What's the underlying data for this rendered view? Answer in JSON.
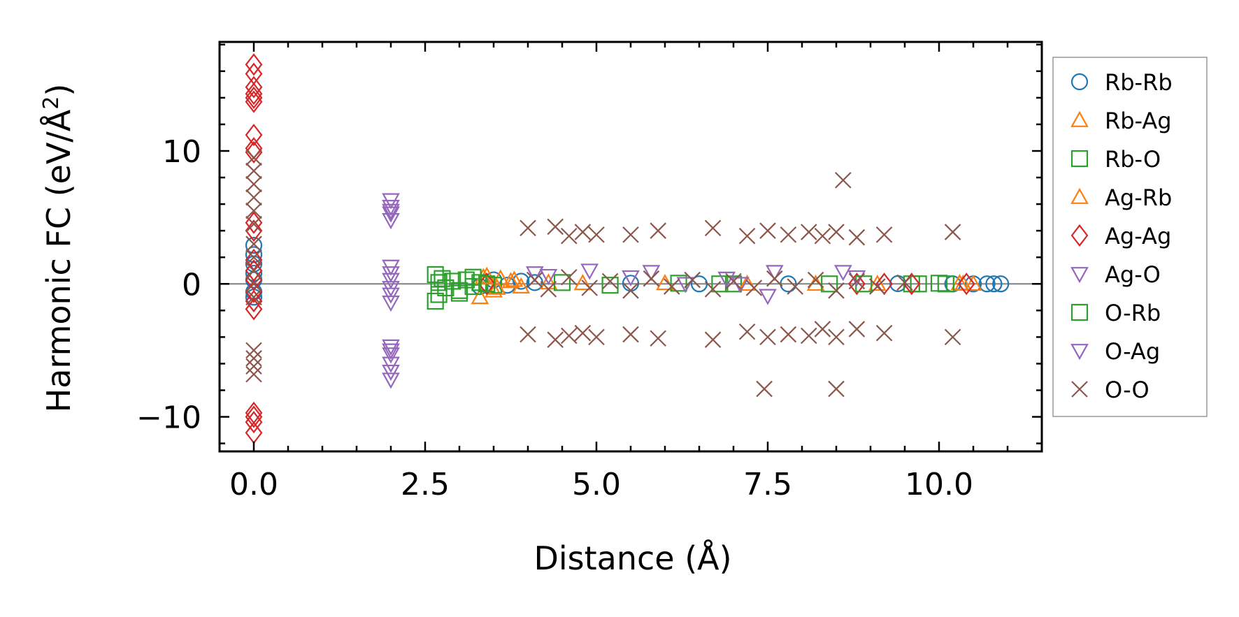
{
  "chart_data": {
    "type": "scatter",
    "title": "",
    "xlabel": "Distance (Å)",
    "ylabel": "Harmonic FC (eV/Å²)",
    "ylabel_base": "Harmonic FC (eV/Å",
    "ylabel_sup": "2",
    "ylabel_end": ")",
    "xlim": [
      -0.5,
      11.5
    ],
    "ylim": [
      -12.6,
      18.2
    ],
    "x_ticks": [
      0.0,
      2.5,
      5.0,
      7.5,
      10.0
    ],
    "x_tick_labels": [
      "0.0",
      "2.5",
      "5.0",
      "7.5",
      "10.0"
    ],
    "y_ticks": [
      -10,
      0,
      10
    ],
    "y_tick_labels": [
      "−10",
      "0",
      "10"
    ],
    "hline_y": 0,
    "legend_position": "outside right",
    "series": [
      {
        "name": "Rb-Rb",
        "marker": "circle",
        "color": "#1f77b4",
        "points": [
          [
            0,
            0.3
          ],
          [
            0,
            0.8
          ],
          [
            0,
            1.5
          ],
          [
            0,
            2.2
          ],
          [
            0,
            2.9
          ],
          [
            0,
            -0.6
          ],
          [
            0,
            -1.0
          ],
          [
            3.3,
            -0.2
          ],
          [
            3.5,
            0.3
          ],
          [
            3.7,
            -0.1
          ],
          [
            3.9,
            0.2
          ],
          [
            4.1,
            0.1
          ],
          [
            5.5,
            0.05
          ],
          [
            6.5,
            0.0
          ],
          [
            7.8,
            0.0
          ],
          [
            9.4,
            0.02
          ],
          [
            10.2,
            0.0
          ],
          [
            10.5,
            0.0
          ],
          [
            10.7,
            0.0
          ],
          [
            10.8,
            0.0
          ],
          [
            10.9,
            0.0
          ]
        ]
      },
      {
        "name": "Rb-Ag",
        "marker": "triangle-up",
        "color": "#ff7f0e",
        "points": [
          [
            3.3,
            -1.0
          ],
          [
            3.4,
            0.6
          ],
          [
            3.5,
            -0.5
          ],
          [
            3.6,
            0.4
          ],
          [
            3.8,
            0.3
          ],
          [
            3.9,
            -0.2
          ],
          [
            4.3,
            0.1
          ],
          [
            6.0,
            0.05
          ],
          [
            8.2,
            0.0
          ],
          [
            10.3,
            0.05
          ],
          [
            10.5,
            0.0
          ]
        ]
      },
      {
        "name": "Rb-O",
        "marker": "square",
        "color": "#2ca02c",
        "points": [
          [
            2.65,
            -1.3
          ],
          [
            2.65,
            0.7
          ],
          [
            2.7,
            -0.8
          ],
          [
            2.75,
            0.4
          ],
          [
            2.8,
            -0.3
          ],
          [
            2.9,
            0.2
          ],
          [
            3.0,
            -0.5
          ],
          [
            3.1,
            0.3
          ],
          [
            3.2,
            -0.2
          ],
          [
            3.3,
            0.1
          ],
          [
            3.5,
            -0.1
          ],
          [
            4.5,
            0.1
          ],
          [
            5.2,
            -0.1
          ],
          [
            6.2,
            0.05
          ],
          [
            7.0,
            0.0
          ],
          [
            8.4,
            0.0
          ],
          [
            9.6,
            0.0
          ],
          [
            9.7,
            0.0
          ],
          [
            10.0,
            0.05
          ],
          [
            10.1,
            0.0
          ]
        ]
      },
      {
        "name": "Ag-Rb",
        "marker": "triangle-up",
        "color": "#ff7f0e",
        "points": [
          [
            3.35,
            0.5
          ],
          [
            3.55,
            -0.3
          ],
          [
            3.75,
            0.2
          ],
          [
            4.8,
            0.05
          ],
          [
            7.2,
            0.0
          ],
          [
            9.1,
            0.0
          ],
          [
            10.35,
            0.0
          ]
        ]
      },
      {
        "name": "Ag-Ag",
        "marker": "diamond",
        "color": "#d62728",
        "points": [
          [
            0,
            16.5
          ],
          [
            0,
            15.8
          ],
          [
            0,
            14.8
          ],
          [
            0,
            14.3
          ],
          [
            0,
            14.0
          ],
          [
            0,
            13.7
          ],
          [
            0,
            11.2
          ],
          [
            0,
            10.2
          ],
          [
            0,
            9.9
          ],
          [
            0,
            4.6
          ],
          [
            0,
            4.0
          ],
          [
            0,
            1.8
          ],
          [
            0,
            1.0
          ],
          [
            0,
            0.3
          ],
          [
            0,
            -0.6
          ],
          [
            0,
            -1.3
          ],
          [
            0,
            -1.9
          ],
          [
            0,
            -9.7
          ],
          [
            0,
            -10.0
          ],
          [
            0,
            -10.4
          ],
          [
            0,
            -11.2
          ],
          [
            3.4,
            0.0
          ],
          [
            8.8,
            0.0
          ],
          [
            9.2,
            0.0
          ],
          [
            9.6,
            0.0
          ],
          [
            10.4,
            0.0
          ]
        ]
      },
      {
        "name": "Ag-O",
        "marker": "triangle-down",
        "color": "#9467bd",
        "points": [
          [
            2.0,
            6.3
          ],
          [
            2.0,
            5.8
          ],
          [
            2.0,
            5.3
          ],
          [
            2.0,
            4.8
          ],
          [
            2.0,
            1.3
          ],
          [
            2.0,
            0.8
          ],
          [
            2.0,
            0.3
          ],
          [
            2.0,
            -0.3
          ],
          [
            2.0,
            -0.8
          ],
          [
            2.0,
            -1.4
          ],
          [
            2.0,
            -4.7
          ],
          [
            2.0,
            -5.3
          ],
          [
            2.0,
            -6.0
          ],
          [
            2.0,
            -6.6
          ],
          [
            2.0,
            -7.2
          ],
          [
            4.1,
            0.8
          ],
          [
            4.9,
            1.0
          ],
          [
            5.8,
            0.9
          ],
          [
            7.6,
            0.9
          ],
          [
            8.6,
            0.9
          ],
          [
            6.3,
            0.0
          ],
          [
            7.1,
            0.0
          ]
        ]
      },
      {
        "name": "O-Rb",
        "marker": "square",
        "color": "#2ca02c",
        "points": [
          [
            2.7,
            0.1
          ],
          [
            3.0,
            -0.7
          ],
          [
            3.2,
            0.5
          ],
          [
            3.4,
            0.0
          ],
          [
            6.8,
            0.0
          ],
          [
            8.9,
            0.0
          ]
        ]
      },
      {
        "name": "O-Ag",
        "marker": "triangle-down",
        "color": "#9467bd",
        "points": [
          [
            2.0,
            5.5
          ],
          [
            2.0,
            -5.0
          ],
          [
            4.3,
            0.6
          ],
          [
            5.5,
            0.5
          ],
          [
            6.9,
            0.4
          ],
          [
            7.5,
            -0.9
          ],
          [
            8.8,
            0.5
          ]
        ]
      },
      {
        "name": "O-O",
        "marker": "x",
        "color": "#8c564b",
        "points": [
          [
            0,
            9.5
          ],
          [
            0,
            8.5
          ],
          [
            0,
            7.5
          ],
          [
            0,
            6.5
          ],
          [
            0,
            5.5
          ],
          [
            0,
            4.5
          ],
          [
            0,
            3.0
          ],
          [
            0,
            2.0
          ],
          [
            0,
            1.0
          ],
          [
            0,
            0.0
          ],
          [
            0,
            -1.0
          ],
          [
            0,
            -5.0
          ],
          [
            0,
            -5.6
          ],
          [
            0,
            -6.2
          ],
          [
            0,
            -6.8
          ],
          [
            4.0,
            4.2
          ],
          [
            4.4,
            4.3
          ],
          [
            4.6,
            3.6
          ],
          [
            4.8,
            3.9
          ],
          [
            5.0,
            3.7
          ],
          [
            5.5,
            3.7
          ],
          [
            5.9,
            4.0
          ],
          [
            6.7,
            4.2
          ],
          [
            7.2,
            3.6
          ],
          [
            7.5,
            4.0
          ],
          [
            7.8,
            3.7
          ],
          [
            8.1,
            3.9
          ],
          [
            8.3,
            3.6
          ],
          [
            8.5,
            3.9
          ],
          [
            8.8,
            3.5
          ],
          [
            9.2,
            3.7
          ],
          [
            10.2,
            3.9
          ],
          [
            8.6,
            7.8
          ],
          [
            4.0,
            -3.8
          ],
          [
            4.4,
            -4.2
          ],
          [
            4.6,
            -3.9
          ],
          [
            4.8,
            -3.7
          ],
          [
            5.0,
            -4.0
          ],
          [
            5.5,
            -3.8
          ],
          [
            5.9,
            -4.1
          ],
          [
            6.7,
            -4.2
          ],
          [
            7.2,
            -3.6
          ],
          [
            7.5,
            -4.0
          ],
          [
            7.8,
            -3.8
          ],
          [
            8.1,
            -3.9
          ],
          [
            8.3,
            -3.4
          ],
          [
            8.5,
            -4.0
          ],
          [
            8.8,
            -3.4
          ],
          [
            9.2,
            -3.7
          ],
          [
            10.2,
            -4.0
          ],
          [
            7.45,
            -7.9
          ],
          [
            8.5,
            -7.9
          ],
          [
            4.1,
            0.3
          ],
          [
            4.3,
            -0.4
          ],
          [
            4.6,
            0.5
          ],
          [
            4.9,
            -0.3
          ],
          [
            5.2,
            0.2
          ],
          [
            5.5,
            -0.5
          ],
          [
            5.8,
            0.4
          ],
          [
            6.1,
            -0.2
          ],
          [
            6.4,
            0.3
          ],
          [
            6.7,
            -0.4
          ],
          [
            7.0,
            0.2
          ],
          [
            7.3,
            -0.3
          ],
          [
            7.6,
            0.4
          ],
          [
            7.9,
            -0.2
          ],
          [
            8.2,
            0.3
          ],
          [
            8.5,
            -0.5
          ],
          [
            8.8,
            0.2
          ],
          [
            9.1,
            -0.2
          ],
          [
            9.5,
            0.1
          ]
        ]
      }
    ]
  }
}
